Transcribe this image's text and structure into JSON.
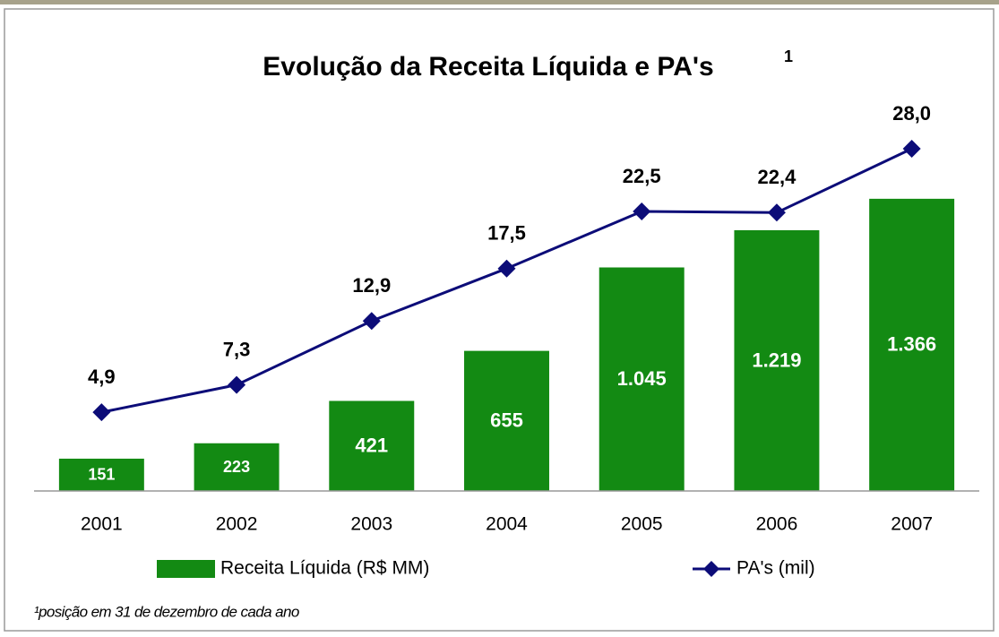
{
  "chart_data": {
    "type": "bar_line",
    "title": "Evolução da Receita Líquida e PA's",
    "title_superscript": "1",
    "footnote": "¹posição em 31 de dezembro de cada ano",
    "categories": [
      "2001",
      "2002",
      "2003",
      "2004",
      "2005",
      "2006",
      "2007"
    ],
    "series": [
      {
        "name": "Receita Líquida (R$ MM)",
        "type": "bar",
        "color": "#138a13",
        "values": [
          151,
          223,
          421,
          655,
          1045,
          1219,
          1366
        ],
        "value_labels": [
          "151",
          "223",
          "421",
          "655",
          "1.045",
          "1.219",
          "1.366"
        ]
      },
      {
        "name": "PA's (mil)",
        "type": "line",
        "axis": "y2",
        "color": "#0c0c78",
        "values": [
          4.9,
          7.3,
          12.9,
          17.5,
          22.5,
          22.4,
          28.0
        ],
        "value_labels": [
          "4,9",
          "7,3",
          "12,9",
          "17,5",
          "22,5",
          "22,4",
          "28,0"
        ]
      }
    ],
    "ylim": [
      0,
      1600
    ],
    "y2lim": [
      -2,
      28
    ]
  }
}
